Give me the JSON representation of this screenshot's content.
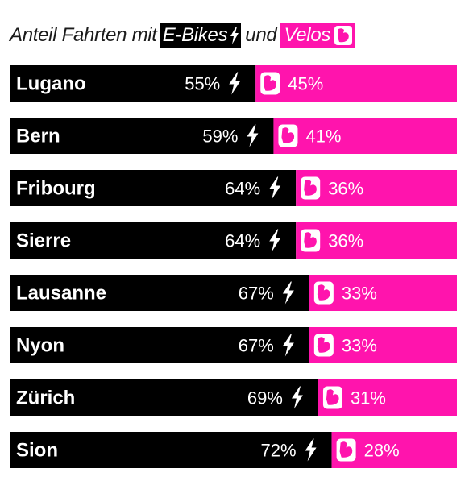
{
  "chart_data": {
    "type": "bar",
    "stacked": true,
    "orientation": "horizontal",
    "title_parts": [
      "Anteil Fahrten mit",
      "E-Bikes",
      "und",
      "Velos"
    ],
    "categories": [
      "Lugano",
      "Bern",
      "Fribourg",
      "Sierre",
      "Lausanne",
      "Nyon",
      "Zürich",
      "Sion"
    ],
    "series": [
      {
        "name": "E-Bikes",
        "values": [
          55,
          59,
          64,
          64,
          67,
          67,
          69,
          72
        ],
        "color": "#000000",
        "icon": "lightning-bolt-icon"
      },
      {
        "name": "Velos",
        "values": [
          45,
          41,
          36,
          36,
          33,
          33,
          31,
          28
        ],
        "color": "#ff14ad",
        "icon": "flexed-bicep-icon"
      }
    ],
    "value_labels_e": [
      "55%",
      "59%",
      "64%",
      "64%",
      "67%",
      "67%",
      "69%",
      "72%"
    ],
    "value_labels_v": [
      "45%",
      "41%",
      "36%",
      "36%",
      "33%",
      "33%",
      "31%",
      "28%"
    ],
    "xlim": [
      0,
      100
    ],
    "grid": false,
    "legend": "in-title"
  }
}
